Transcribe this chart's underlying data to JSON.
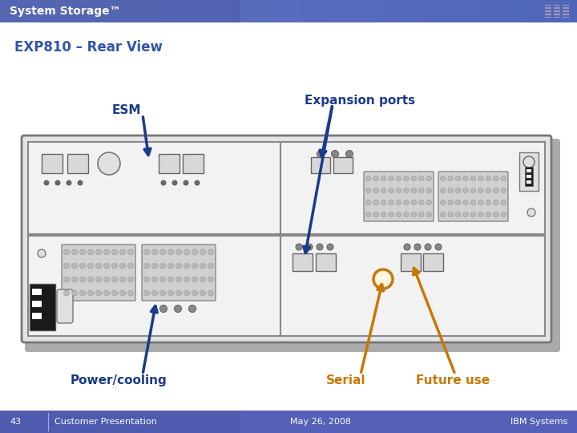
{
  "title_bar_color": "#6870c4",
  "title_text": "System Storage™",
  "title_text_color": "#ffffff",
  "title_fontsize": 10,
  "slide_title": "EXP810 – Rear View",
  "slide_title_color": "#3355aa",
  "slide_title_fontsize": 12,
  "body_bg_color": "#ffffff",
  "footer_page": "43",
  "footer_center": "Customer Presentation",
  "footer_date": "May 26, 2008",
  "footer_right": "IBM Systems",
  "footer_text_color": "#ffffff",
  "footer_fontsize": 8,
  "label_color_blue": "#1a3a8a",
  "label_color_orange": "#c87800"
}
